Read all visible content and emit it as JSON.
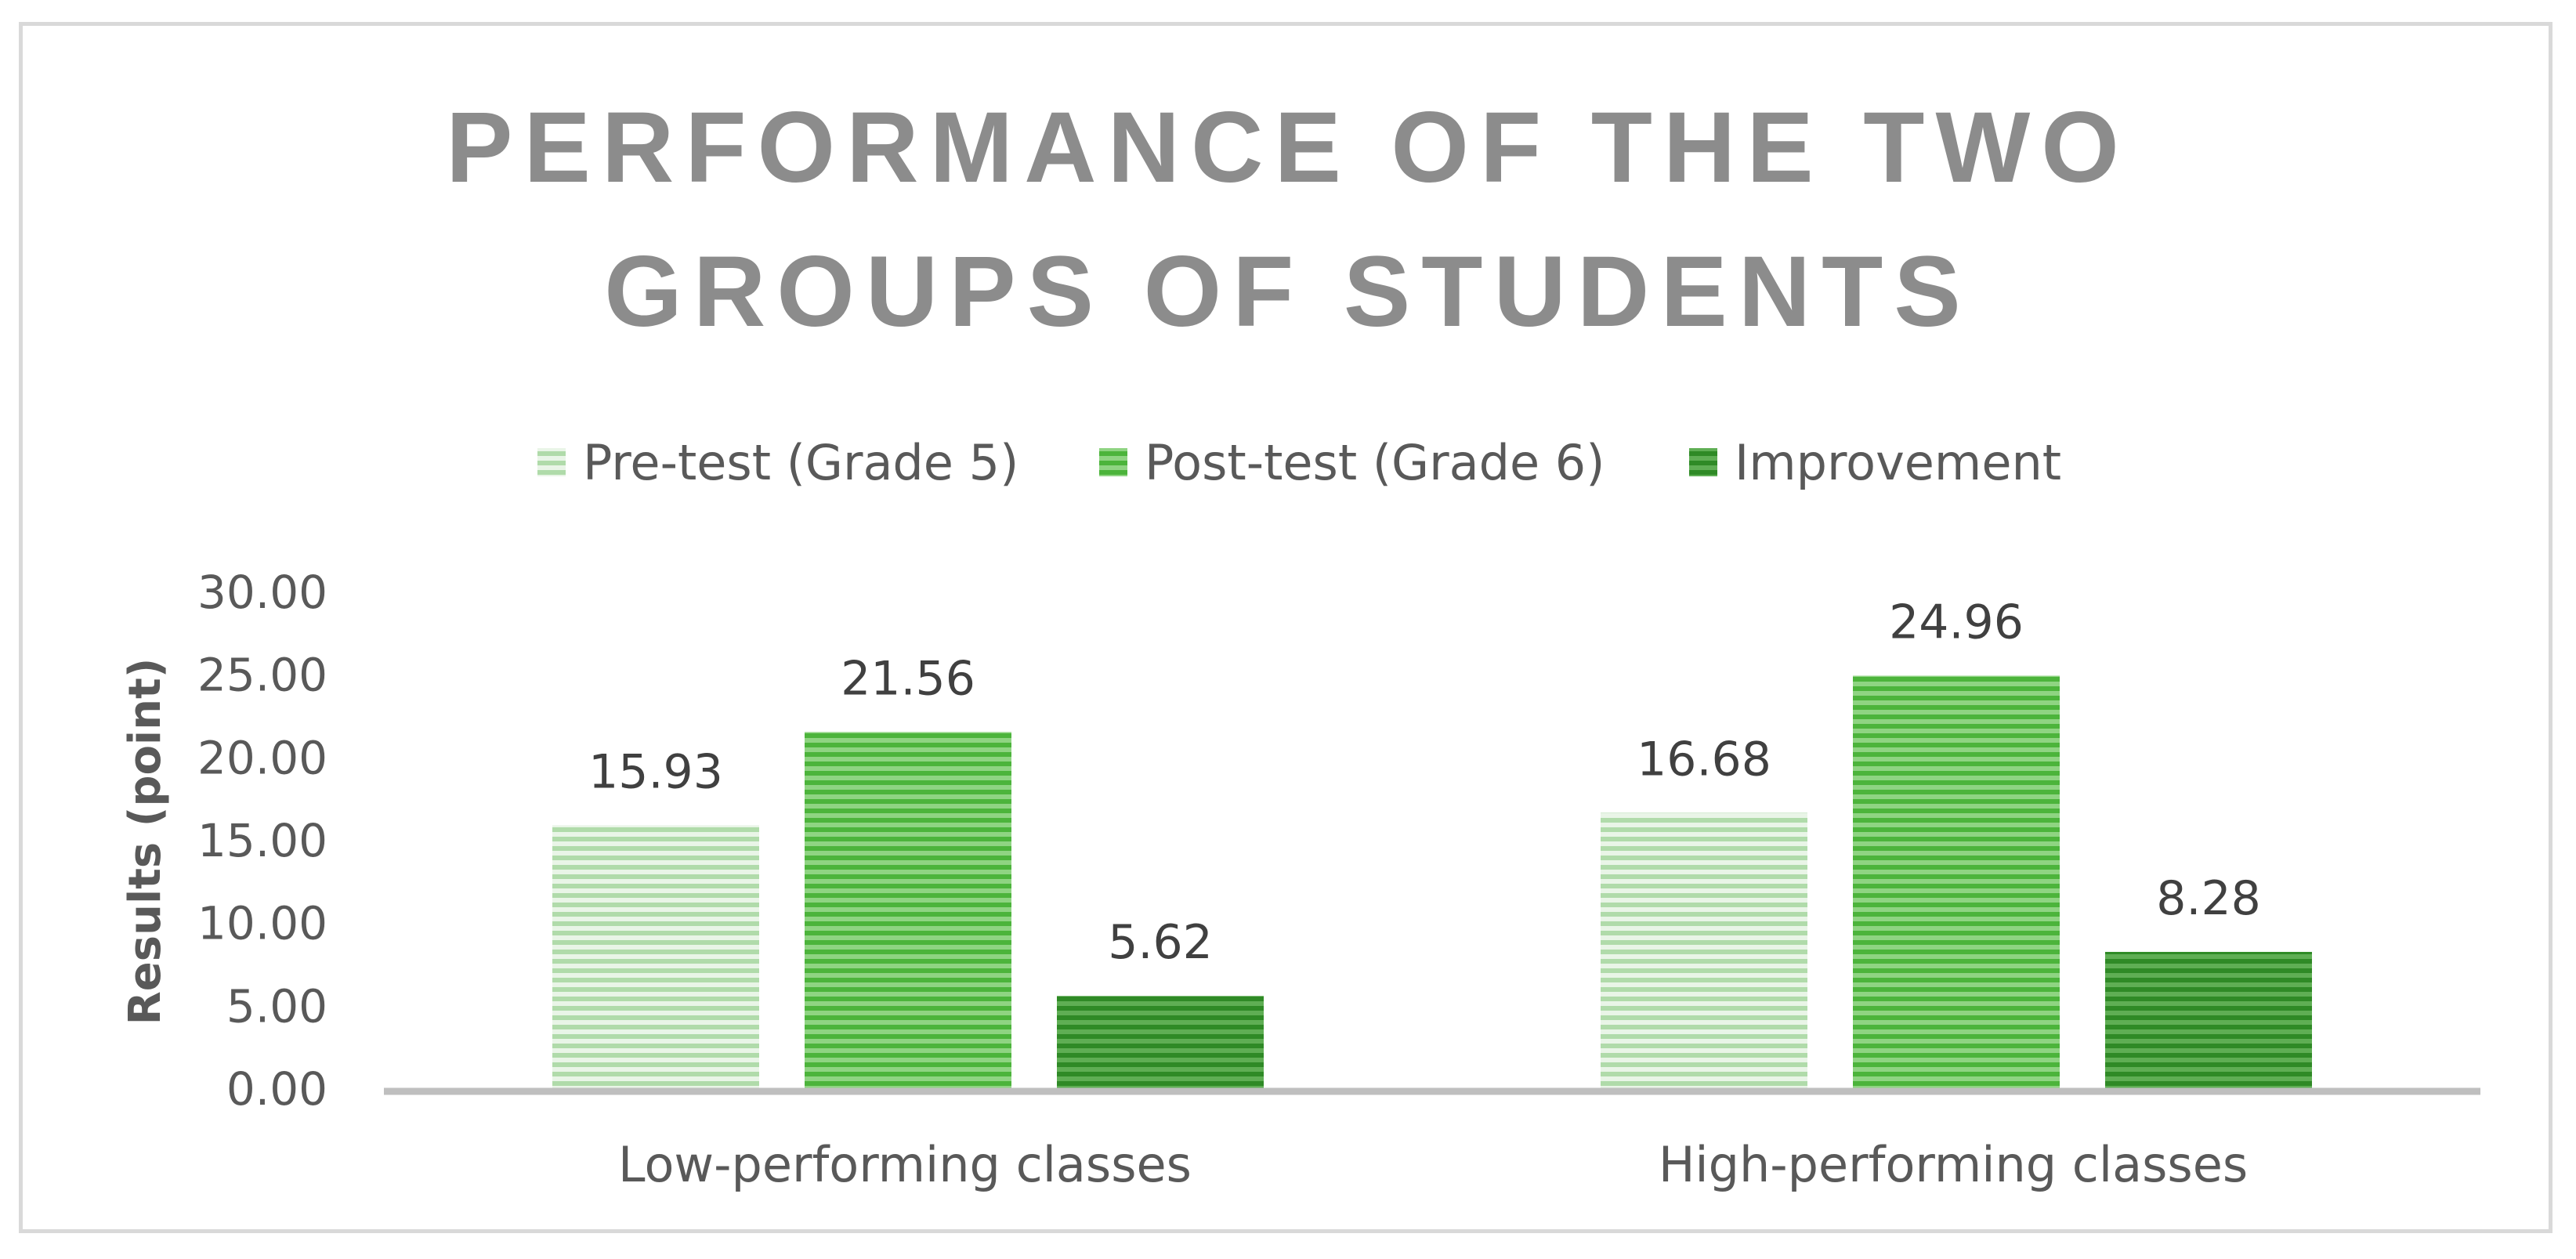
{
  "chart_data": {
    "type": "bar",
    "title_lines": [
      "PERFORMANCE OF THE TWO",
      "GROUPS OF STUDENTS"
    ],
    "xlabel": "",
    "ylabel": "Results (point)",
    "ylim": [
      0,
      30
    ],
    "yticks": [
      "0.00",
      "5.00",
      "10.00",
      "15.00",
      "20.00",
      "25.00",
      "30.00"
    ],
    "grid": false,
    "legend_position": "top",
    "categories": [
      "Low-performing classes",
      "High-performing classes"
    ],
    "series": [
      {
        "name": "Pre-test (Grade 5)",
        "values": [
          15.93,
          16.68
        ],
        "labels": [
          "15.93",
          "16.68"
        ],
        "color": "#b3dcae"
      },
      {
        "name": "Post-test (Grade 6)",
        "values": [
          21.56,
          24.96
        ],
        "labels": [
          "21.56",
          "24.96"
        ],
        "color": "#5cc04a"
      },
      {
        "name": "Improvement",
        "values": [
          5.62,
          8.28
        ],
        "labels": [
          "5.62",
          "8.28"
        ],
        "color": "#3a9a30"
      }
    ]
  }
}
